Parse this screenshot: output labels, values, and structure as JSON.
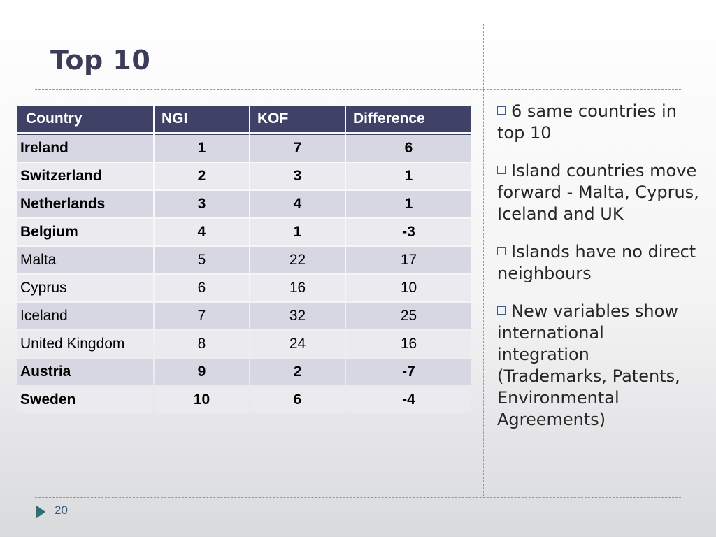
{
  "slide": {
    "title": "Top 10",
    "page_number": "20"
  },
  "table": {
    "headers": [
      "Country",
      "NGI",
      "KOF",
      "Difference"
    ],
    "rows": [
      {
        "country": "Ireland",
        "ngi": "1",
        "kof": "7",
        "difference": "6",
        "bold": true
      },
      {
        "country": "Switzerland",
        "ngi": "2",
        "kof": "3",
        "difference": "1",
        "bold": true
      },
      {
        "country": "Netherlands",
        "ngi": "3",
        "kof": "4",
        "difference": "1",
        "bold": true
      },
      {
        "country": "Belgium",
        "ngi": "4",
        "kof": "1",
        "difference": "-3",
        "bold": true
      },
      {
        "country": "Malta",
        "ngi": "5",
        "kof": "22",
        "difference": "17",
        "bold": false
      },
      {
        "country": "Cyprus",
        "ngi": "6",
        "kof": "16",
        "difference": "10",
        "bold": false
      },
      {
        "country": "Iceland",
        "ngi": "7",
        "kof": "32",
        "difference": "25",
        "bold": false
      },
      {
        "country": "United Kingdom",
        "ngi": "8",
        "kof": "24",
        "difference": "16",
        "bold": false
      },
      {
        "country": "Austria",
        "ngi": "9",
        "kof": "2",
        "difference": "-7",
        "bold": true
      },
      {
        "country": "Sweden",
        "ngi": "10",
        "kof": "6",
        "difference": "-4",
        "bold": true
      }
    ]
  },
  "bullets": [
    "6 same countries in top 10",
    "Island countries move forward - Malta, Cyprus, Iceland and UK",
    "Islands have no direct neighbours",
    "New variables show international integration (Trademarks, Patents, Environmental Agreements)"
  ],
  "icons": {
    "bullet": "checkbox-square-icon",
    "nav": "play-triangle-icon"
  },
  "colors": {
    "title": "#3b3b5a",
    "header_bg": "#3f4266",
    "row_odd": "#d6d7e2",
    "row_even": "#eaeaef",
    "accent": "#2f6f72"
  }
}
